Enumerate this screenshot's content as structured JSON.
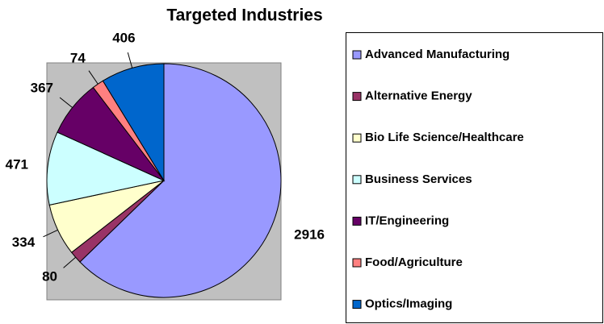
{
  "chart_data": {
    "type": "pie",
    "title": "Targeted Industries",
    "categories": [
      "Advanced Manufacturing",
      "Alternative Energy",
      "Bio Life Science/Healthcare",
      "Business Services",
      "IT/Engineering",
      "Food/Agriculture",
      "Optics/Imaging"
    ],
    "values": [
      2916,
      80,
      334,
      471,
      367,
      74,
      406
    ],
    "colors": [
      "#9999ff",
      "#993366",
      "#ffffcc",
      "#ccffff",
      "#660066",
      "#ff8080",
      "#0066cc"
    ],
    "legend": "right"
  }
}
